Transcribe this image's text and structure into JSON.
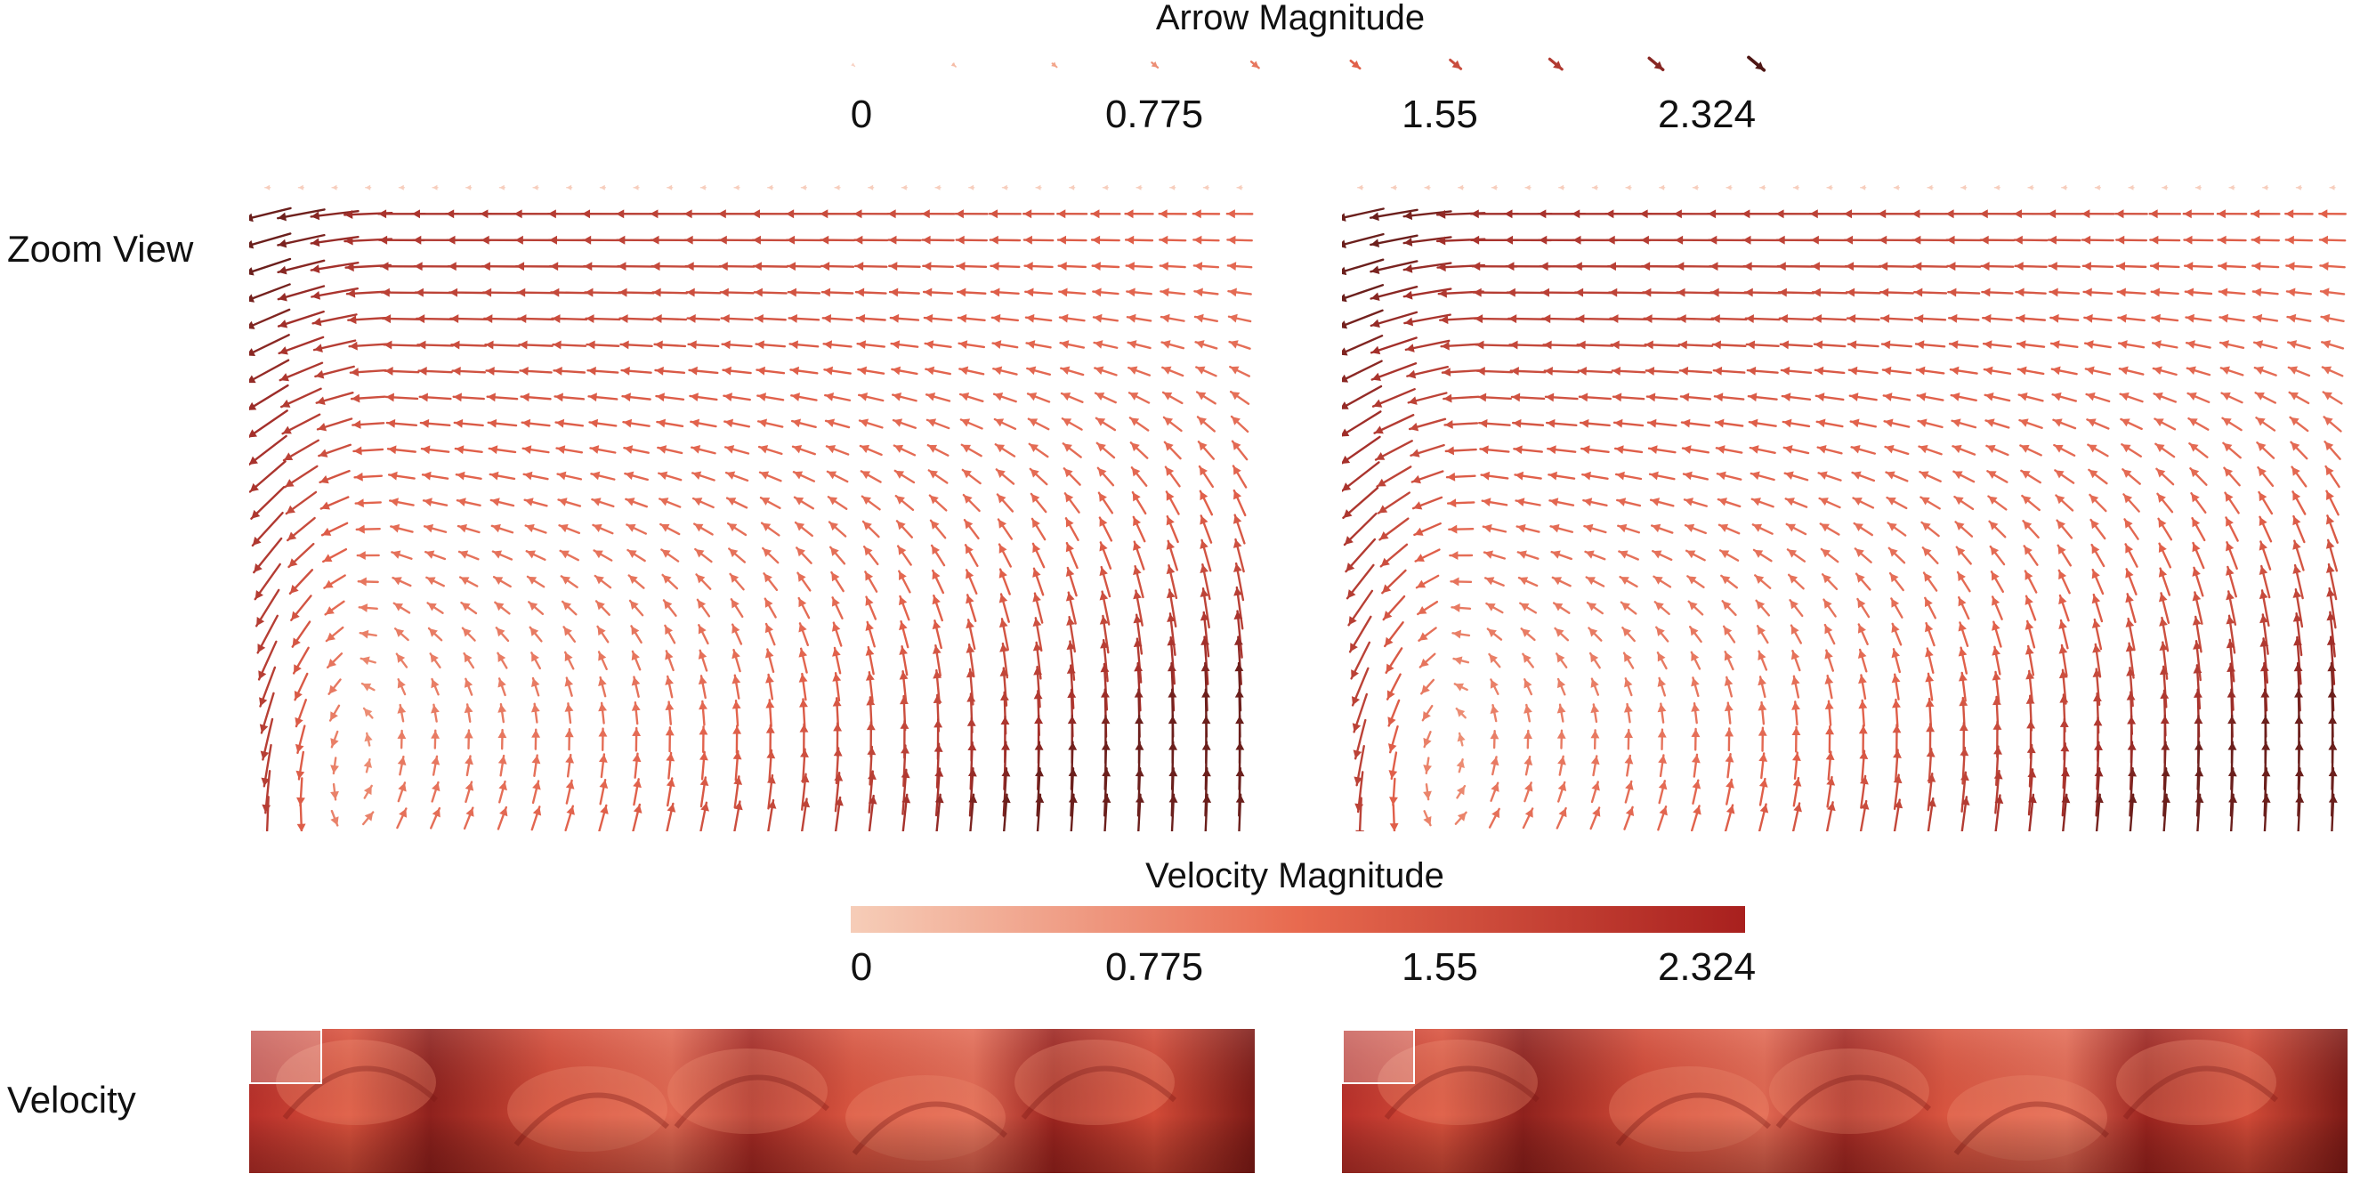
{
  "arrow_legend": {
    "title": "Arrow Magnitude",
    "ticks": [
      "0",
      "0.775",
      "1.55",
      "2.324"
    ]
  },
  "velocity_legend": {
    "title": "Velocity Magnitude",
    "ticks": [
      "0",
      "0.775",
      "1.55",
      "2.324"
    ]
  },
  "row_labels": {
    "zoom": "Zoom View",
    "velocity": "Velocity"
  },
  "colors": {
    "ramp_low": "#f6cdb8",
    "ramp_mid": "#e86a4f",
    "ramp_high": "#a8201e",
    "arrow_dark": "#5c1a18",
    "field_base": "#cf4332"
  },
  "panels": [
    "left",
    "right"
  ]
}
